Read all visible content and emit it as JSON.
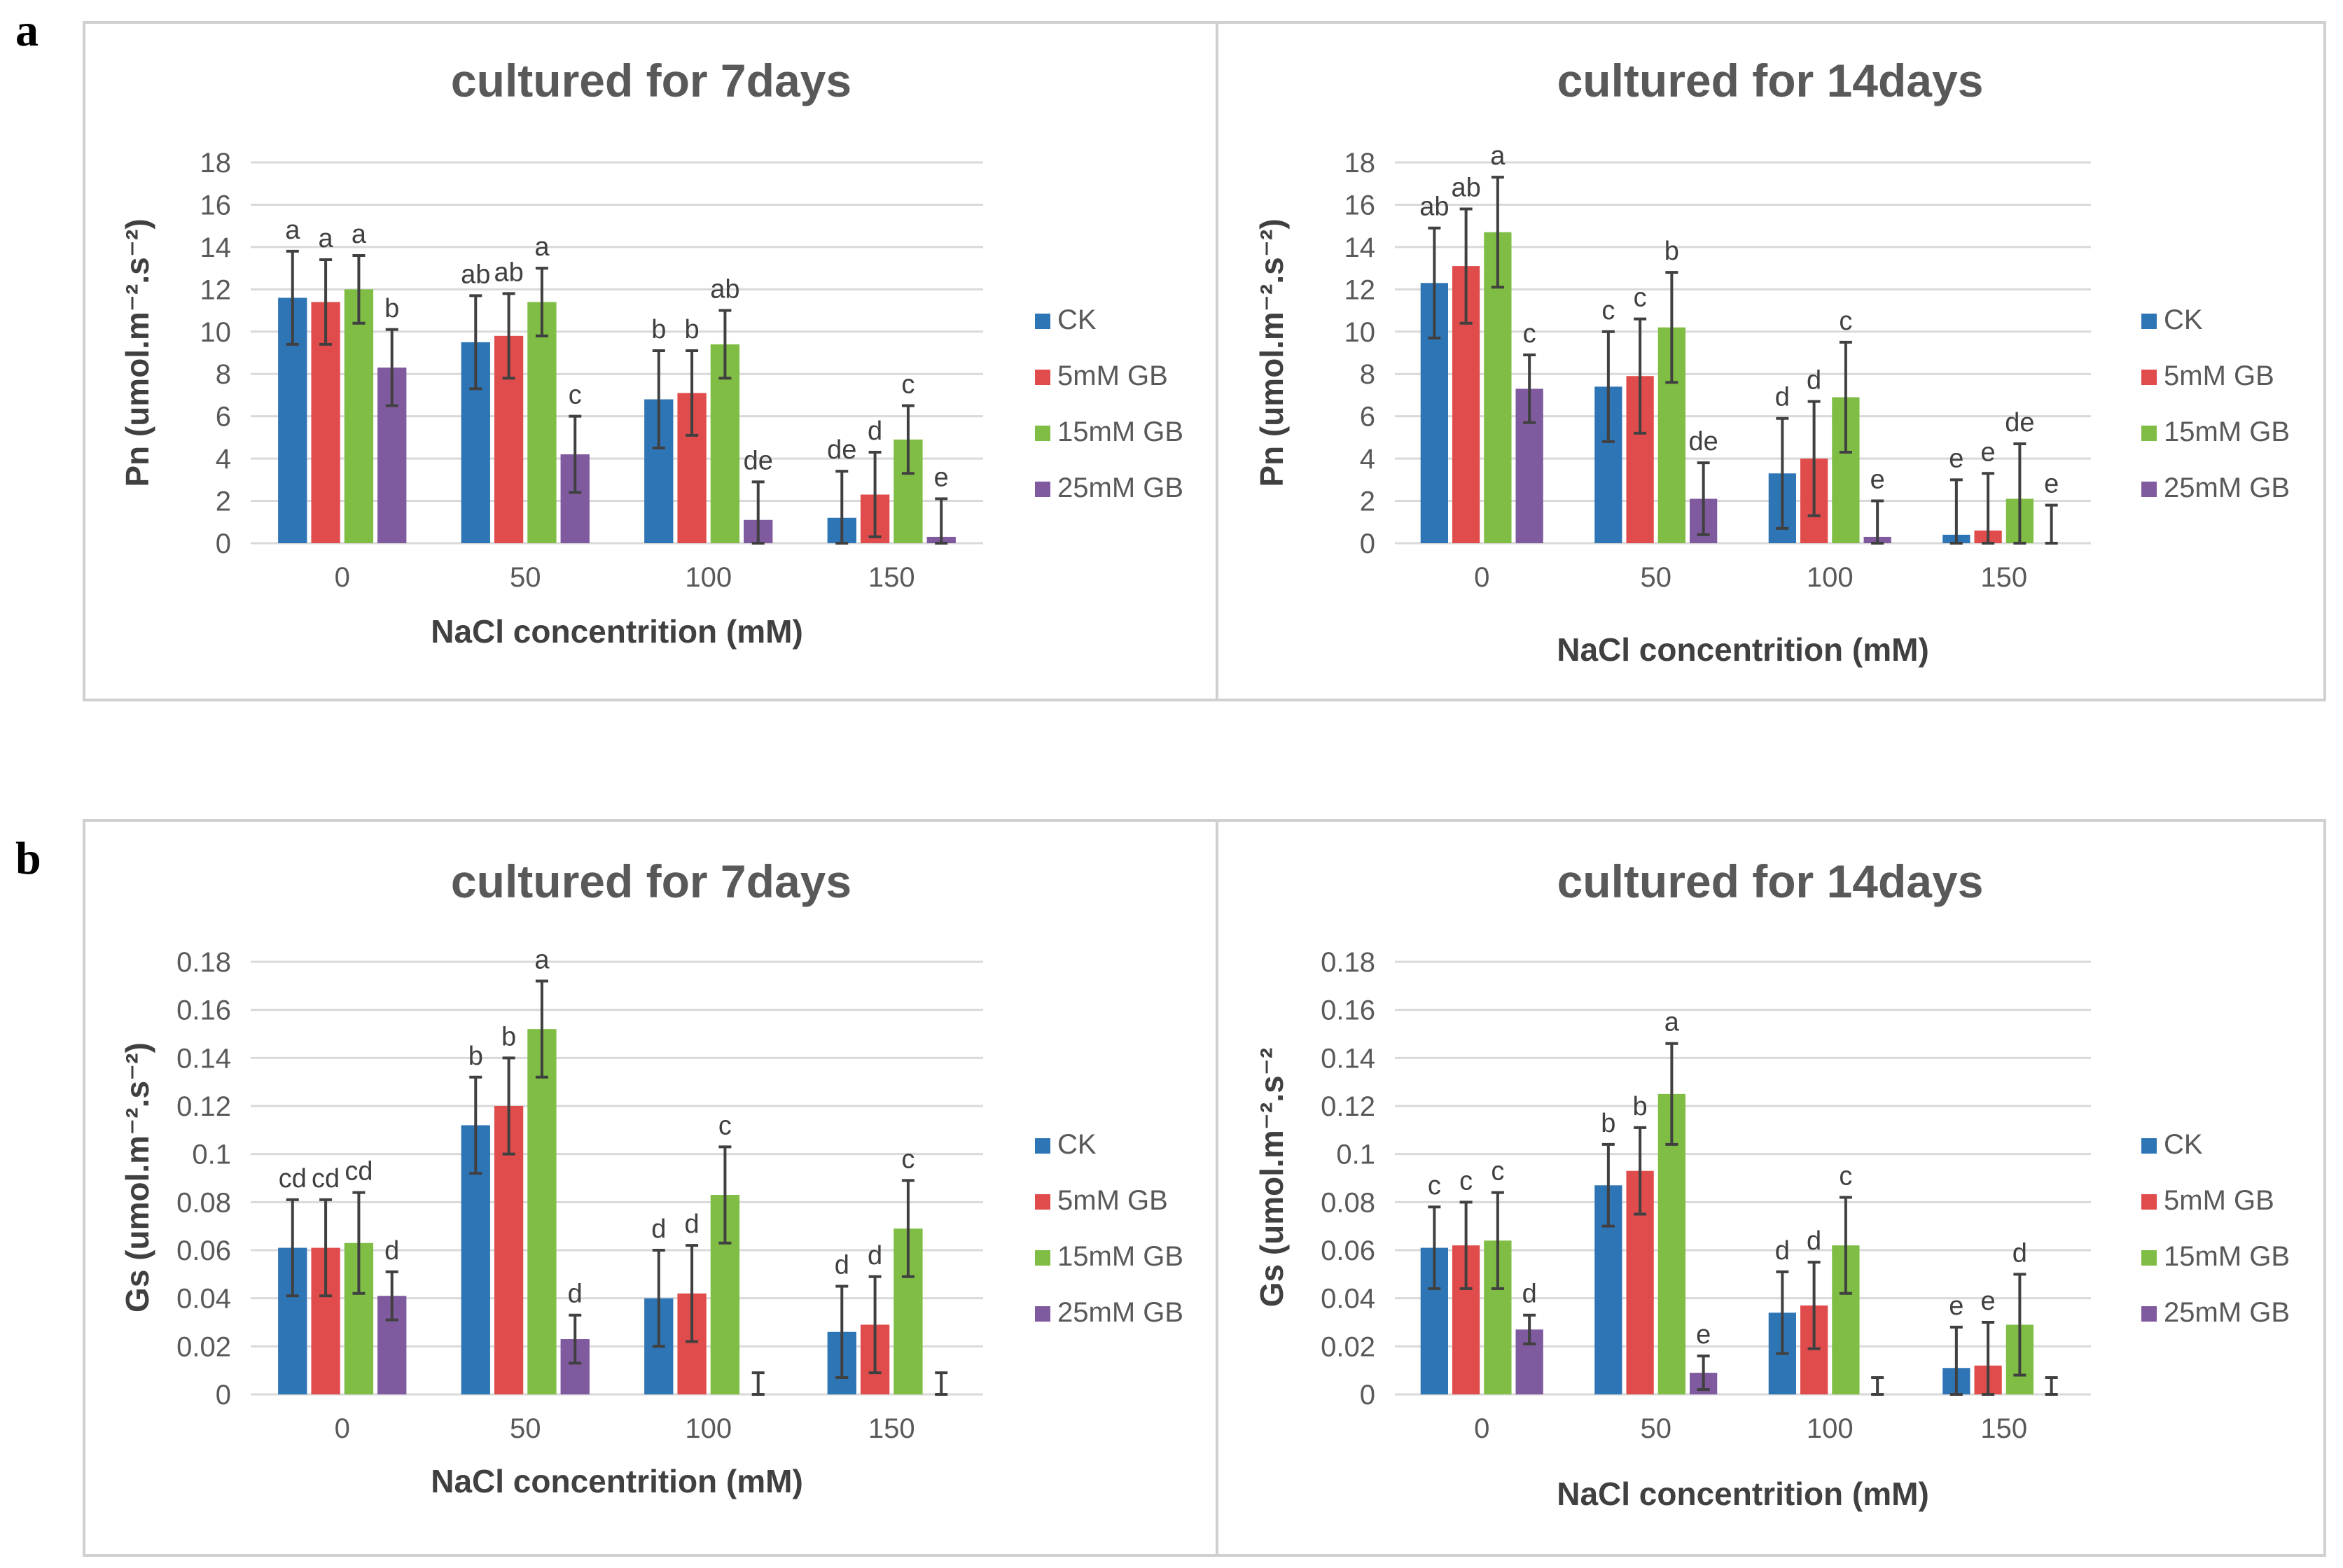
{
  "panel_labels": [
    "a",
    "b"
  ],
  "chart_data": [
    {
      "type": "bar",
      "panel": "a",
      "title": "cultured for 7days",
      "xlabel": "NaCl concentrition (mM)",
      "ylabel": "Pn (umol.m⁻².s⁻²)",
      "ylim": [
        0,
        18
      ],
      "yticks": [
        "0",
        "2",
        "4",
        "6",
        "8",
        "10",
        "12",
        "14",
        "16",
        "18"
      ],
      "categories": [
        "0",
        "50",
        "100",
        "150"
      ],
      "series": [
        {
          "name": "CK",
          "color": "#2e75b6",
          "values": [
            11.6,
            9.5,
            6.8,
            1.2
          ],
          "errors": [
            2.2,
            2.2,
            2.3,
            2.2
          ],
          "labels": [
            "a",
            "ab",
            "b",
            "de"
          ]
        },
        {
          "name": "5mM   GB",
          "color": "#e04c4c",
          "values": [
            11.4,
            9.8,
            7.1,
            2.3
          ],
          "errors": [
            2.0,
            2.0,
            2.0,
            2.0
          ],
          "labels": [
            "a",
            "ab",
            "b",
            "d"
          ]
        },
        {
          "name": "15mM GB",
          "color": "#7fbd44",
          "values": [
            12.0,
            11.4,
            9.4,
            4.9
          ],
          "errors": [
            1.6,
            1.6,
            1.6,
            1.6
          ],
          "labels": [
            "a",
            "a",
            "ab",
            "c"
          ]
        },
        {
          "name": "25mM GB",
          "color": "#7f5a9e",
          "values": [
            8.3,
            4.2,
            1.1,
            0.3
          ],
          "errors": [
            1.8,
            1.8,
            1.8,
            1.8
          ],
          "labels": [
            "b",
            "c",
            "de",
            "e"
          ]
        }
      ]
    },
    {
      "type": "bar",
      "panel": "a",
      "title": "cultured for 14days",
      "xlabel": "NaCl concentrition (mM)",
      "ylabel": "Pn (umol.m⁻².s⁻²)",
      "ylim": [
        0,
        18
      ],
      "yticks": [
        "0",
        "2",
        "4",
        "6",
        "8",
        "10",
        "12",
        "14",
        "16",
        "18"
      ],
      "categories": [
        "0",
        "50",
        "100",
        "150"
      ],
      "series": [
        {
          "name": "CK",
          "color": "#2e75b6",
          "values": [
            12.3,
            7.4,
            3.3,
            0.4
          ],
          "errors": [
            2.6,
            2.6,
            2.6,
            2.6
          ],
          "labels": [
            "ab",
            "c",
            "d",
            "e"
          ]
        },
        {
          "name": "5mM   GB",
          "color": "#e04c4c",
          "values": [
            13.1,
            7.9,
            4.0,
            0.6
          ],
          "errors": [
            2.7,
            2.7,
            2.7,
            2.7
          ],
          "labels": [
            "ab",
            "c",
            "d",
            "e"
          ]
        },
        {
          "name": "15mM GB",
          "color": "#7fbd44",
          "values": [
            14.7,
            10.2,
            6.9,
            2.1
          ],
          "errors": [
            2.6,
            2.6,
            2.6,
            2.6
          ],
          "labels": [
            "a",
            "b",
            "c",
            "de"
          ]
        },
        {
          "name": "25mM GB",
          "color": "#7f5a9e",
          "values": [
            7.3,
            2.1,
            0.3,
            0.0
          ],
          "errors": [
            1.6,
            1.7,
            1.7,
            1.8
          ],
          "labels": [
            "c",
            "de",
            "e",
            "e"
          ]
        }
      ]
    },
    {
      "type": "bar",
      "panel": "b",
      "title": "cultured for 7days",
      "xlabel": "NaCl concentrition (mM)",
      "ylabel": "Gs (umol.m⁻².s⁻²)",
      "ylim": [
        0,
        0.18
      ],
      "yticks": [
        "0",
        "0.02",
        "0.04",
        "0.06",
        "0.08",
        "0.1",
        "0.12",
        "0.14",
        "0.16",
        "0.18"
      ],
      "categories": [
        "0",
        "50",
        "100",
        "150"
      ],
      "series": [
        {
          "name": "CK",
          "color": "#2e75b6",
          "values": [
            0.061,
            0.112,
            0.04,
            0.026
          ],
          "errors": [
            0.02,
            0.02,
            0.02,
            0.019
          ],
          "labels": [
            "cd",
            "b",
            "d",
            "d"
          ]
        },
        {
          "name": "5mM   GB",
          "color": "#e04c4c",
          "values": [
            0.061,
            0.12,
            0.042,
            0.029
          ],
          "errors": [
            0.02,
            0.02,
            0.02,
            0.02
          ],
          "labels": [
            "cd",
            "b",
            "d",
            "d"
          ]
        },
        {
          "name": "15mM GB",
          "color": "#7fbd44",
          "values": [
            0.063,
            0.152,
            0.083,
            0.069
          ],
          "errors": [
            0.021,
            0.02,
            0.02,
            0.02
          ],
          "labels": [
            "cd",
            "a",
            "c",
            "c"
          ]
        },
        {
          "name": "25mM GB",
          "color": "#7f5a9e",
          "values": [
            0.041,
            0.023,
            0.0,
            0.0
          ],
          "errors": [
            0.01,
            0.01,
            0.009,
            0.009
          ],
          "labels": [
            "d",
            "d",
            "",
            ""
          ]
        }
      ]
    },
    {
      "type": "bar",
      "panel": "b",
      "title": "cultured for 14days",
      "xlabel": "NaCl concentrition (mM)",
      "ylabel": "Gs (umol.m⁻².s⁻²",
      "ylim": [
        0,
        0.18
      ],
      "yticks": [
        "0",
        "0.02",
        "0.04",
        "0.06",
        "0.08",
        "0.1",
        "0.12",
        "0.14",
        "0.16",
        "0.18"
      ],
      "categories": [
        "0",
        "50",
        "100",
        "150"
      ],
      "series": [
        {
          "name": "CK",
          "color": "#2e75b6",
          "values": [
            0.061,
            0.087,
            0.034,
            0.011
          ],
          "errors": [
            0.017,
            0.017,
            0.017,
            0.017
          ],
          "labels": [
            "c",
            "b",
            "d",
            "e"
          ]
        },
        {
          "name": "5mM   GB",
          "color": "#e04c4c",
          "values": [
            0.062,
            0.093,
            0.037,
            0.012
          ],
          "errors": [
            0.018,
            0.018,
            0.018,
            0.018
          ],
          "labels": [
            "c",
            "b",
            "d",
            "e"
          ]
        },
        {
          "name": "15mM GB",
          "color": "#7fbd44",
          "values": [
            0.064,
            0.125,
            0.062,
            0.029
          ],
          "errors": [
            0.02,
            0.021,
            0.02,
            0.021
          ],
          "labels": [
            "c",
            "a",
            "c",
            "d"
          ]
        },
        {
          "name": "25mM GB",
          "color": "#7f5a9e",
          "values": [
            0.027,
            0.009,
            0.0,
            0.0
          ],
          "errors": [
            0.006,
            0.007,
            0.007,
            0.007
          ],
          "labels": [
            "d",
            "e",
            "",
            ""
          ]
        }
      ]
    }
  ]
}
